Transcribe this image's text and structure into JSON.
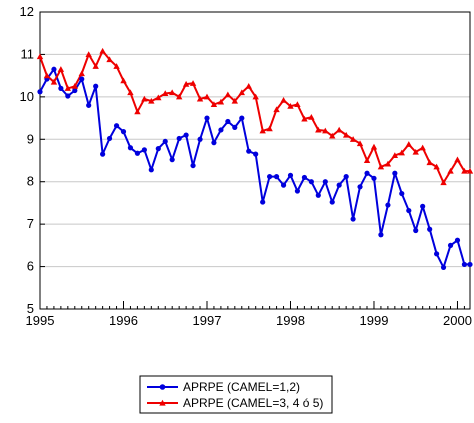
{
  "chart_data": {
    "type": "line",
    "xlim": [
      1995,
      2000.15
    ],
    "ylim": [
      5,
      12
    ],
    "x_ticks": [
      1995,
      1996,
      1997,
      1998,
      1999,
      2000
    ],
    "x_tick_labels": [
      "1995",
      "1996",
      "1997",
      "1998",
      "1999",
      "2000"
    ],
    "y_ticks": [
      5,
      6,
      7,
      8,
      9,
      10,
      11,
      12
    ],
    "y_tick_labels": [
      "5",
      "6",
      "7",
      "8",
      "9",
      "10",
      "11",
      "12"
    ],
    "x_minor_step": 0.08333,
    "grid": "horizontal",
    "legend_position": "bottom-center",
    "colors": {
      "series1": "#0000dd",
      "series2": "#ee0000"
    },
    "series": [
      {
        "name": "APRPE (CAMEL=1,2)",
        "color": "#0000dd",
        "marker": "circle",
        "x": [
          1995.0,
          1995.083,
          1995.167,
          1995.25,
          1995.333,
          1995.417,
          1995.5,
          1995.583,
          1995.667,
          1995.75,
          1995.833,
          1995.917,
          1996.0,
          1996.083,
          1996.167,
          1996.25,
          1996.333,
          1996.417,
          1996.5,
          1996.583,
          1996.667,
          1996.75,
          1996.833,
          1996.917,
          1997.0,
          1997.083,
          1997.167,
          1997.25,
          1997.333,
          1997.417,
          1997.5,
          1997.583,
          1997.667,
          1997.75,
          1997.833,
          1997.917,
          1998.0,
          1998.083,
          1998.167,
          1998.25,
          1998.333,
          1998.417,
          1998.5,
          1998.583,
          1998.667,
          1998.75,
          1998.833,
          1998.917,
          1999.0,
          1999.083,
          1999.167,
          1999.25,
          1999.333,
          1999.417,
          1999.5,
          1999.583,
          1999.667,
          1999.75,
          1999.833,
          1999.917,
          2000.0,
          2000.083,
          2000.15
        ],
        "y": [
          10.12,
          10.42,
          10.65,
          10.2,
          10.02,
          10.15,
          10.42,
          9.8,
          10.25,
          8.65,
          9.02,
          9.32,
          9.18,
          8.8,
          8.67,
          8.75,
          8.28,
          8.78,
          8.95,
          8.52,
          9.02,
          9.1,
          8.38,
          9.0,
          9.5,
          8.92,
          9.22,
          9.42,
          9.28,
          9.5,
          8.72,
          8.65,
          7.52,
          8.12,
          8.12,
          7.92,
          8.15,
          7.78,
          8.1,
          8.0,
          7.68,
          8.0,
          7.52,
          7.92,
          8.12,
          7.12,
          7.88,
          8.2,
          8.08,
          6.75,
          7.45,
          8.2,
          7.72,
          7.32,
          6.85,
          7.42,
          6.88,
          6.3,
          5.98,
          6.5,
          6.62,
          6.05,
          6.05
        ]
      },
      {
        "name": "APRPE (CAMEL=3, 4 ó 5)",
        "color": "#ee0000",
        "marker": "triangle",
        "x": [
          1995.0,
          1995.083,
          1995.167,
          1995.25,
          1995.333,
          1995.417,
          1995.5,
          1995.583,
          1995.667,
          1995.75,
          1995.833,
          1995.917,
          1996.0,
          1996.083,
          1996.167,
          1996.25,
          1996.333,
          1996.417,
          1996.5,
          1996.583,
          1996.667,
          1996.75,
          1996.833,
          1996.917,
          1997.0,
          1997.083,
          1997.167,
          1997.25,
          1997.333,
          1997.417,
          1997.5,
          1997.583,
          1997.667,
          1997.75,
          1997.833,
          1997.917,
          1998.0,
          1998.083,
          1998.167,
          1998.25,
          1998.333,
          1998.417,
          1998.5,
          1998.583,
          1998.667,
          1998.75,
          1998.833,
          1998.917,
          1999.0,
          1999.083,
          1999.167,
          1999.25,
          1999.333,
          1999.417,
          1999.5,
          1999.583,
          1999.667,
          1999.75,
          1999.833,
          1999.917,
          2000.0,
          2000.083,
          2000.15
        ],
        "y": [
          10.95,
          10.5,
          10.35,
          10.65,
          10.2,
          10.25,
          10.55,
          11.0,
          10.72,
          11.08,
          10.88,
          10.72,
          10.38,
          10.1,
          9.65,
          9.95,
          9.9,
          9.98,
          10.08,
          10.1,
          10.0,
          10.3,
          10.32,
          9.95,
          10.0,
          9.82,
          9.88,
          10.05,
          9.9,
          10.1,
          10.25,
          10.0,
          9.2,
          9.25,
          9.7,
          9.92,
          9.78,
          9.82,
          9.48,
          9.52,
          9.22,
          9.2,
          9.08,
          9.22,
          9.1,
          9.0,
          8.9,
          8.5,
          8.82,
          8.35,
          8.42,
          8.62,
          8.68,
          8.88,
          8.7,
          8.8,
          8.45,
          8.35,
          7.98,
          8.25,
          8.52,
          8.25,
          8.25
        ]
      }
    ]
  }
}
